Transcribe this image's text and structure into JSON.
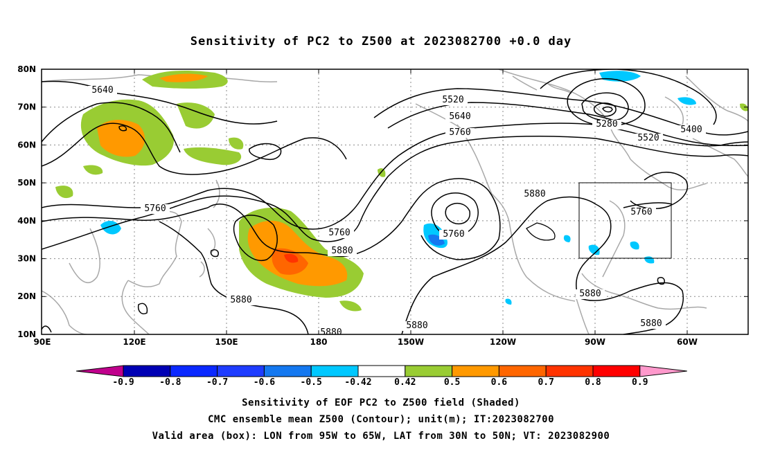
{
  "title": "Sensitivity of PC2 to Z500 at 2023082700 +0.0 day",
  "axes": {
    "lat_labels": [
      "80N",
      "70N",
      "60N",
      "50N",
      "40N",
      "30N",
      "20N",
      "10N"
    ],
    "lon_labels": [
      "90E",
      "120E",
      "150E",
      "180",
      "150W",
      "120W",
      "90W",
      "60W"
    ]
  },
  "contour_labels": [
    "5640",
    "5520",
    "5640",
    "5760",
    "5280",
    "5400",
    "5520",
    "5760",
    "5760",
    "5880",
    "5760",
    "5880",
    "5760",
    "5880",
    "5880",
    "5880",
    "5880",
    "5880"
  ],
  "colorbar": {
    "labels": [
      "-0.9",
      "-0.8",
      "-0.7",
      "-0.6",
      "-0.5",
      "-0.42",
      "0.42",
      "0.5",
      "0.6",
      "0.7",
      "0.8",
      "0.9"
    ],
    "colors": [
      "#c0008c",
      "#0000b4",
      "#0a28ff",
      "#1e3cff",
      "#1478f0",
      "#00c8ff",
      "#ffffff",
      "#99cc33",
      "#ff9900",
      "#ff6600",
      "#ff3300",
      "#ff0000",
      "#ff99cc"
    ]
  },
  "valid_area": {
    "lon": [
      "95W",
      "65W"
    ],
    "lat": [
      "30N",
      "50N"
    ]
  },
  "captions": [
    "Sensitivity of EOF PC2 to Z500 field (Shaded)",
    "CMC ensemble mean Z500 (Contour); unit(m); IT:2023082700",
    "Valid area (box): LON from 95W to 65W, LAT from 30N to 50N; VT: 2023082900"
  ]
}
